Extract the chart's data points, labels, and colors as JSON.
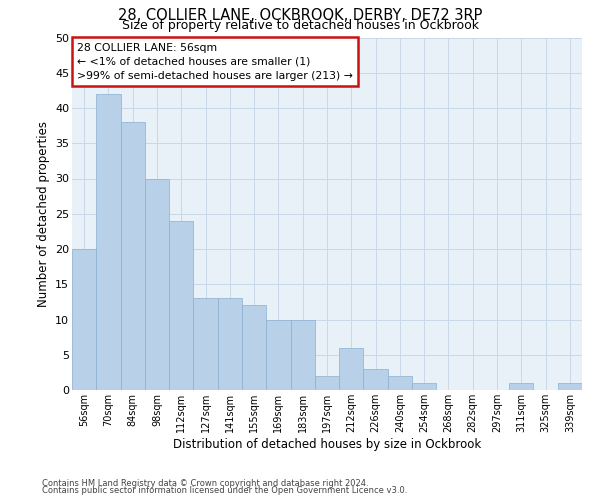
{
  "title_line1": "28, COLLIER LANE, OCKBROOK, DERBY, DE72 3RP",
  "title_line2": "Size of property relative to detached houses in Ockbrook",
  "xlabel": "Distribution of detached houses by size in Ockbrook",
  "ylabel": "Number of detached properties",
  "categories": [
    "56sqm",
    "70sqm",
    "84sqm",
    "98sqm",
    "112sqm",
    "127sqm",
    "141sqm",
    "155sqm",
    "169sqm",
    "183sqm",
    "197sqm",
    "212sqm",
    "226sqm",
    "240sqm",
    "254sqm",
    "268sqm",
    "282sqm",
    "297sqm",
    "311sqm",
    "325sqm",
    "339sqm"
  ],
  "values": [
    20,
    42,
    38,
    30,
    24,
    13,
    13,
    12,
    10,
    10,
    2,
    6,
    3,
    2,
    1,
    0,
    0,
    0,
    1,
    0,
    1
  ],
  "bar_color": "#b8d0e8",
  "bar_edge_color": "#8ab0d0",
  "ylim": [
    0,
    50
  ],
  "yticks": [
    0,
    5,
    10,
    15,
    20,
    25,
    30,
    35,
    40,
    45,
    50
  ],
  "annotation_title": "28 COLLIER LANE: 56sqm",
  "annotation_line2": "← <1% of detached houses are smaller (1)",
  "annotation_line3": ">99% of semi-detached houses are larger (213) →",
  "footnote_line1": "Contains HM Land Registry data © Crown copyright and database right 2024.",
  "footnote_line2": "Contains public sector information licensed under the Open Government Licence v3.0.",
  "grid_color": "#c8d8e8",
  "background_color": "#e8f0f8"
}
